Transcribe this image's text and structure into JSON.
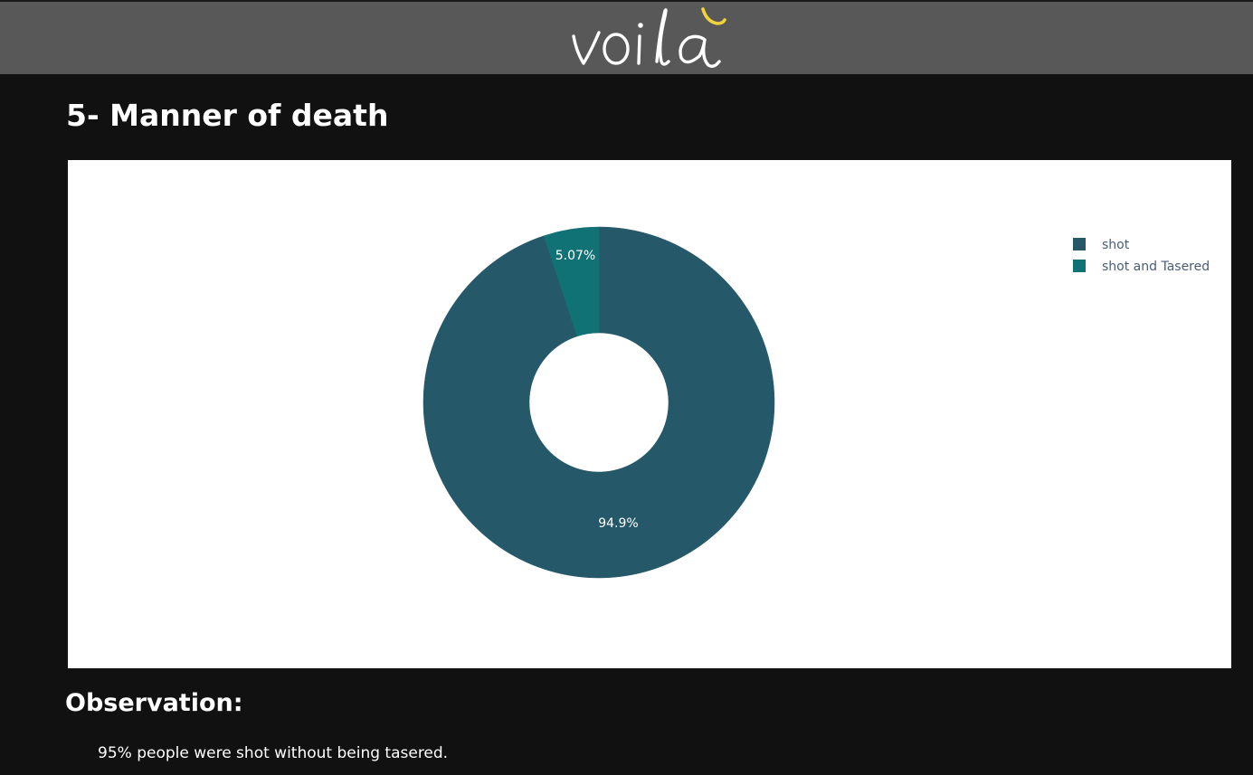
{
  "app": {
    "logo_text": "voilà"
  },
  "section": {
    "title": "5- Manner of death"
  },
  "chart_data": {
    "type": "pie",
    "hole": true,
    "categories": [
      "shot",
      "shot and Tasered"
    ],
    "values": [
      94.93,
      5.07
    ],
    "labels": [
      "94.9%",
      "5.07%"
    ],
    "colors": [
      "#255869",
      "#107275"
    ],
    "legend": {
      "placement": "top-right",
      "entries": [
        "shot",
        "shot and Tasered"
      ]
    }
  },
  "observation": {
    "heading": "Observation:",
    "text": "95% people were shot without being tasered."
  },
  "theme": {
    "background": "#111111",
    "header": "#585858",
    "accent": "#f2d33b"
  }
}
